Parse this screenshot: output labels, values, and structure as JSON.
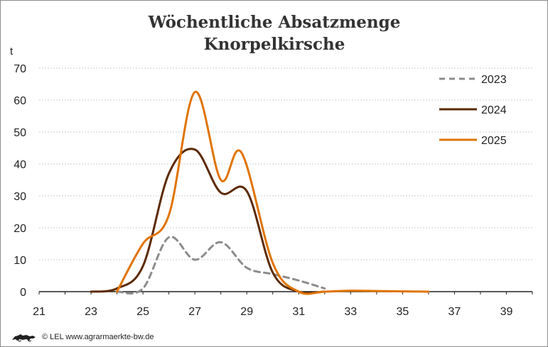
{
  "chart_data": {
    "type": "line",
    "title": [
      "Wöchentliche Absatzmenge",
      "Knorpelkirsche"
    ],
    "ylabel": "t",
    "xlabel": "",
    "ylim": [
      0,
      70
    ],
    "yticks": [
      0,
      10,
      20,
      30,
      40,
      50,
      60,
      70
    ],
    "xlim": [
      21,
      40
    ],
    "xticks": [
      21,
      23,
      25,
      27,
      29,
      31,
      33,
      35,
      37,
      39
    ],
    "grid": "horizontal-dotted",
    "legend_position": "top-right",
    "series": [
      {
        "name": "2023",
        "color": "#8c8c8c",
        "style": "dashed",
        "x": [
          24,
          25,
          26,
          27,
          28,
          29,
          30,
          31,
          32
        ],
        "values": [
          0,
          1,
          17,
          10,
          15.5,
          7.5,
          5.5,
          3.5,
          1
        ]
      },
      {
        "name": "2024",
        "color": "#5c2a00",
        "style": "solid",
        "x": [
          23,
          24,
          25,
          26,
          27,
          28,
          29,
          30,
          31,
          32
        ],
        "values": [
          0,
          1,
          8,
          37,
          44.5,
          31,
          31.5,
          6,
          0,
          0
        ]
      },
      {
        "name": "2025",
        "color": "#e07400",
        "style": "solid",
        "x": [
          24,
          25,
          26,
          27,
          28,
          28.8,
          30,
          31,
          32,
          33,
          34,
          35,
          36
        ],
        "values": [
          0,
          15,
          24,
          62.5,
          35,
          43.5,
          9,
          0,
          0,
          0.3,
          0.2,
          0.1,
          0
        ]
      }
    ]
  },
  "footer": {
    "logo_icon": "lion-emblem-icon",
    "copyright": "© LEL www.agrarmaerkte-bw.de"
  }
}
